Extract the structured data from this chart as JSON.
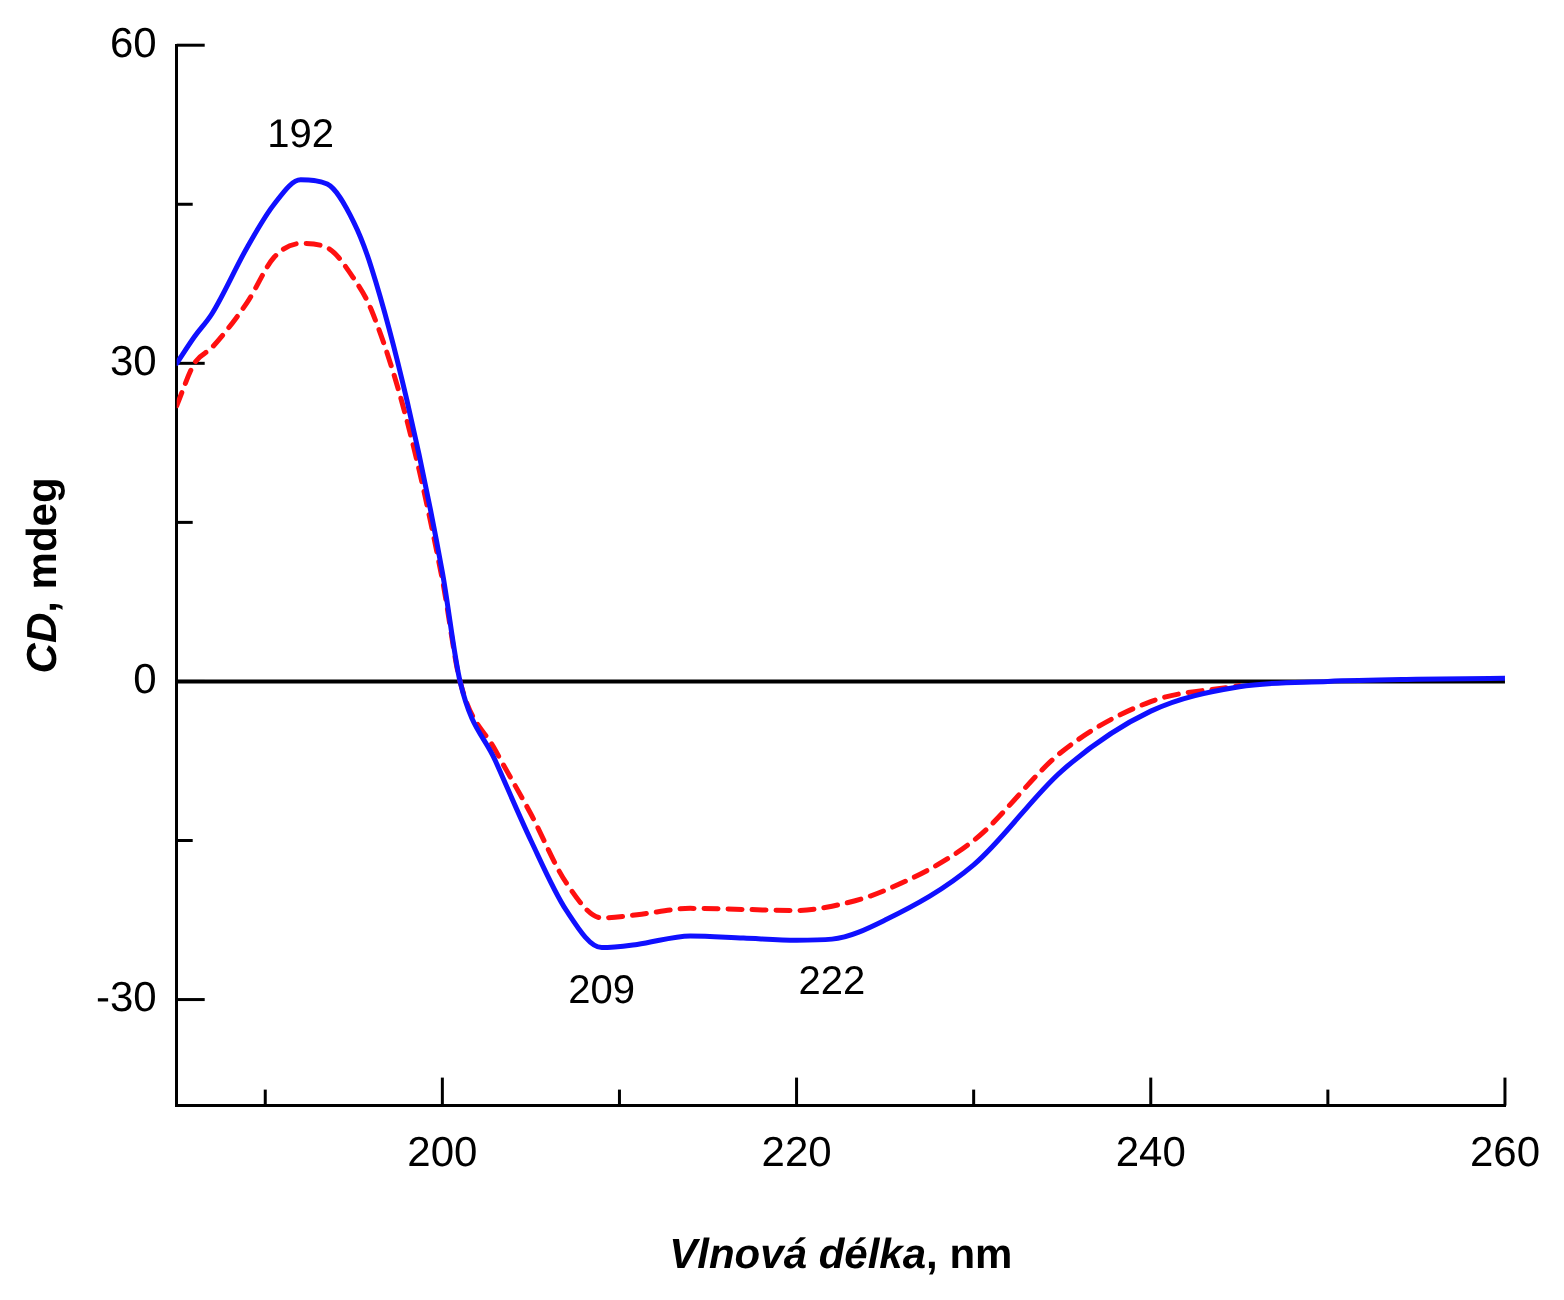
{
  "chart_data": {
    "type": "line",
    "xlabel": "Vlnová délka, nm",
    "ylabel": "CD, mdeg",
    "x": [
      185,
      186,
      187,
      189,
      190.5,
      192,
      193.5,
      195,
      196,
      198,
      200,
      201,
      203,
      205,
      207,
      209,
      211,
      214,
      217,
      220,
      222,
      225,
      230,
      235,
      240,
      245,
      250,
      255,
      260
    ],
    "series": [
      {
        "color": "#1010ff",
        "line_style": "solid",
        "values": [
          30,
          32.5,
          34.7,
          41,
          45,
          47.3,
          46.9,
          43.3,
          39,
          26.5,
          10.3,
          0,
          -7.5,
          -15,
          -21.6,
          -25.1,
          -24.8,
          -24,
          -24.2,
          -24.4,
          -24.3,
          -22.5,
          -17.3,
          -8.4,
          -2.8,
          -0.5,
          0,
          0.2,
          0.3
        ]
      },
      {
        "color": "#ff1010",
        "line_style": "dashed",
        "values": [
          26,
          30,
          31.5,
          35.8,
          40,
          41.3,
          40.9,
          38,
          35,
          24.6,
          9.6,
          0,
          -6.5,
          -12.5,
          -19,
          -22.3,
          -22,
          -21.4,
          -21.5,
          -21.6,
          -21.2,
          -19.7,
          -15,
          -6.6,
          -1.9,
          -0.4,
          null,
          null,
          null
        ]
      }
    ],
    "xlim": [
      185,
      260
    ],
    "xticks": [
      {
        "value": 190,
        "label": null
      },
      200,
      {
        "value": 210,
        "label": null
      },
      220,
      {
        "value": 230,
        "label": null
      },
      240,
      {
        "value": 250,
        "label": null
      },
      260
    ],
    "ylim": [
      -40,
      60
    ],
    "yticks": [
      {
        "value": -15,
        "label": null
      },
      -30,
      0,
      {
        "value": 15,
        "label": null
      },
      30,
      {
        "value": 45,
        "label": null
      },
      60
    ],
    "ref_lines": [
      {
        "axis": "y",
        "value": 0,
        "color": "#000000"
      }
    ],
    "annotations": [
      {
        "text": "192",
        "x": 192,
        "y": 47.3
      },
      {
        "text": "209",
        "x": 209,
        "y": -25.1
      },
      {
        "text": "222",
        "x": 222,
        "y": -24.3
      }
    ],
    "grid": false,
    "legend": false,
    "marker": "none"
  }
}
